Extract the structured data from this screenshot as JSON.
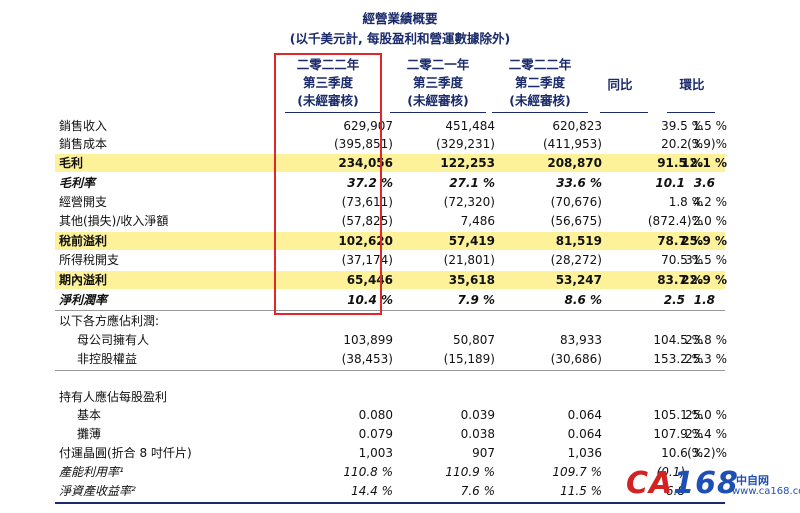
{
  "title": "經營業績概要",
  "subtitle": "(以千美元計, 每股盈利和營運數據除外)",
  "columns": [
    {
      "l1": "二零二二年",
      "l2": "第三季度",
      "l3": "(未經審核)"
    },
    {
      "l1": "二零二一年",
      "l2": "第三季度",
      "l3": "(未經審核)"
    },
    {
      "l1": "二零二二年",
      "l2": "第二季度",
      "l3": "(未經審核)"
    },
    {
      "l1": "同比",
      "l2": "",
      "l3": ""
    },
    {
      "l1": "環比",
      "l2": "",
      "l3": ""
    }
  ],
  "rows": [
    {
      "label": "銷售收入",
      "v": [
        "629,907",
        "451,484",
        "620,823",
        "39.5 %",
        "1.5 %"
      ]
    },
    {
      "label": "銷售成本",
      "v": [
        "(395,851)",
        "(329,231)",
        "(411,953)",
        "20.2 %",
        "(3.9)%"
      ]
    },
    {
      "label": "毛利",
      "v": [
        "234,056",
        "122,253",
        "208,870",
        "91.5 %",
        "12.1 %"
      ]
    },
    {
      "label": "毛利率",
      "v": [
        "37.2 %",
        "27.1 %",
        "33.6 %",
        "10.1",
        "3.6"
      ]
    },
    {
      "label": "經營開支",
      "v": [
        "(73,611)",
        "(72,320)",
        "(70,676)",
        "1.8 %",
        "4.2 %"
      ]
    },
    {
      "label": "其他(損失)/收入淨額",
      "v": [
        "(57,825)",
        "7,486",
        "(56,675)",
        "(872.4)%",
        "2.0 %"
      ]
    },
    {
      "label": "稅前溢利",
      "v": [
        "102,620",
        "57,419",
        "81,519",
        "78.7 %",
        "25.9 %"
      ]
    },
    {
      "label": "所得稅開支",
      "v": [
        "(37,174)",
        "(21,801)",
        "(28,272)",
        "70.5 %",
        "31.5 %"
      ]
    },
    {
      "label": "期內溢利",
      "v": [
        "65,446",
        "35,618",
        "53,247",
        "83.7 %",
        "22.9 %"
      ]
    },
    {
      "label": "淨利潤率",
      "v": [
        "10.4 %",
        "7.9 %",
        "8.6 %",
        "2.5",
        "1.8"
      ]
    },
    {
      "label": "以下各方應佔利潤:",
      "v": [
        "",
        "",
        "",
        "",
        ""
      ]
    },
    {
      "label": "母公司擁有人",
      "v": [
        "103,899",
        "50,807",
        "83,933",
        "104.5 %",
        "23.8 %"
      ]
    },
    {
      "label": "非控股權益",
      "v": [
        "(38,453)",
        "(15,189)",
        "(30,686)",
        "153.2 %",
        "25.3 %"
      ]
    },
    {
      "label": "持有人應佔每股盈利",
      "v": [
        "",
        "",
        "",
        "",
        ""
      ]
    },
    {
      "label": "基本",
      "v": [
        "0.080",
        "0.039",
        "0.064",
        "105.1 %",
        "25.0 %"
      ]
    },
    {
      "label": "攤薄",
      "v": [
        "0.079",
        "0.038",
        "0.064",
        "107.9 %",
        "23.4 %"
      ]
    },
    {
      "label": "付運晶圓(折合 8 吋仟片)",
      "v": [
        "1,003",
        "907",
        "1,036",
        "10.6 %",
        "(3.2)%"
      ]
    },
    {
      "label": "產能利用率¹",
      "v": [
        "110.8 %",
        "110.9 %",
        "109.7 %",
        "(0.1)",
        ""
      ]
    },
    {
      "label": "淨資產收益率²",
      "v": [
        "14.4 %",
        "7.6 %",
        "11.5 %",
        "6.8",
        ""
      ]
    }
  ],
  "watermark": {
    "brand": "CA",
    "brand_num": "168",
    "sub": "中自网",
    "url": "www.ca168.com"
  }
}
